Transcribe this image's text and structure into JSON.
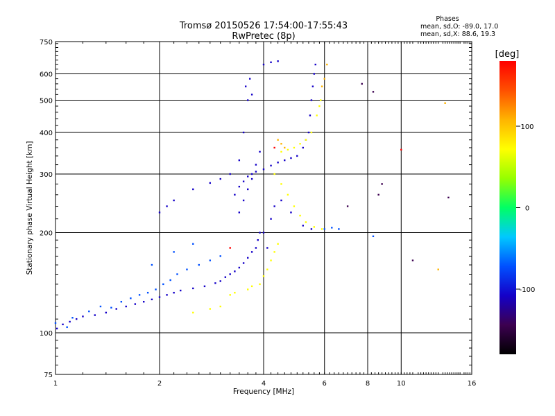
{
  "chart_data": {
    "type": "scatter",
    "title": "Tromsø 20150526 17:54:00-17:55:43",
    "subtitle": "RwPretec (8p)",
    "xlabel": "Frequency [MHz]",
    "ylabel": "Stationary phase Virtual Height [km]",
    "x_scale": "log",
    "y_scale": "log",
    "xlim": [
      1,
      16
    ],
    "ylim": [
      75,
      750
    ],
    "x_ticks": [
      1,
      2,
      4,
      6,
      8,
      10,
      16
    ],
    "y_ticks": [
      75,
      100,
      200,
      300,
      400,
      500,
      600,
      750
    ],
    "grid": true,
    "phase_info": {
      "title": "Phases",
      "line_o": "mean, sd,O: -89.0, 17.0",
      "line_x": "mean, sd,X:  88.6, 19.3"
    },
    "colorbar": {
      "label": "[deg]",
      "ticks": [
        100,
        0,
        -100
      ],
      "range": [
        -180,
        180
      ],
      "colors": [
        "#000000",
        "#3c0050",
        "#1400c8",
        "#0050ff",
        "#00c8ff",
        "#00ff64",
        "#96ff00",
        "#ffff00",
        "#ffb400",
        "#ff5000",
        "#ff0000"
      ]
    },
    "series": [
      {
        "phase": -100,
        "points": [
          [
            1.01,
            103
          ],
          [
            1.05,
            106
          ],
          [
            1.1,
            108
          ],
          [
            1.15,
            110
          ],
          [
            1.2,
            112
          ],
          [
            1.3,
            113
          ],
          [
            1.4,
            115
          ],
          [
            1.5,
            118
          ],
          [
            1.6,
            120
          ],
          [
            1.7,
            122
          ],
          [
            1.8,
            124
          ],
          [
            1.9,
            126
          ],
          [
            2.0,
            128
          ],
          [
            2.1,
            130
          ],
          [
            2.2,
            132
          ],
          [
            2.3,
            134
          ],
          [
            2.5,
            136
          ],
          [
            2.7,
            138
          ],
          [
            2.9,
            141
          ],
          [
            3.0,
            143
          ],
          [
            3.1,
            147
          ],
          [
            3.2,
            150
          ],
          [
            3.3,
            153
          ],
          [
            3.4,
            157
          ],
          [
            3.5,
            162
          ],
          [
            3.6,
            168
          ],
          [
            3.7,
            175
          ],
          [
            3.8,
            180
          ],
          [
            3.85,
            190
          ],
          [
            3.9,
            200
          ],
          [
            3.3,
            260
          ],
          [
            3.4,
            275
          ],
          [
            3.5,
            285
          ],
          [
            3.6,
            295
          ],
          [
            3.7,
            300
          ],
          [
            3.8,
            305
          ],
          [
            4.0,
            310
          ],
          [
            4.2,
            318
          ],
          [
            4.4,
            325
          ],
          [
            4.6,
            330
          ],
          [
            4.8,
            335
          ],
          [
            5.0,
            340
          ],
          [
            5.2,
            360
          ],
          [
            5.3,
            380
          ],
          [
            5.4,
            400
          ],
          [
            5.45,
            450
          ],
          [
            5.5,
            500
          ],
          [
            5.55,
            550
          ],
          [
            5.6,
            600
          ],
          [
            5.65,
            640
          ],
          [
            3.4,
            230
          ],
          [
            3.5,
            250
          ],
          [
            3.6,
            270
          ],
          [
            3.7,
            290
          ],
          [
            3.8,
            320
          ],
          [
            3.9,
            350
          ],
          [
            4.0,
            200
          ],
          [
            4.1,
            180
          ],
          [
            4.2,
            220
          ],
          [
            4.3,
            240
          ],
          [
            4.5,
            250
          ],
          [
            4.8,
            230
          ],
          [
            5.2,
            210
          ],
          [
            5.5,
            205
          ],
          [
            3.55,
            550
          ],
          [
            3.6,
            500
          ],
          [
            3.65,
            580
          ],
          [
            3.7,
            520
          ],
          [
            4.0,
            640
          ],
          [
            4.2,
            650
          ],
          [
            4.4,
            655
          ],
          [
            2.0,
            230
          ],
          [
            2.1,
            240
          ],
          [
            2.2,
            250
          ],
          [
            2.5,
            270
          ],
          [
            2.8,
            282
          ],
          [
            3.0,
            290
          ],
          [
            3.2,
            300
          ],
          [
            3.4,
            330
          ],
          [
            3.5,
            400
          ]
        ]
      },
      {
        "phase": -60,
        "points": [
          [
            1.0,
            107
          ],
          [
            1.08,
            104
          ],
          [
            1.12,
            111
          ],
          [
            1.25,
            116
          ],
          [
            1.35,
            120
          ],
          [
            1.45,
            119
          ],
          [
            1.55,
            124
          ],
          [
            1.65,
            127
          ],
          [
            1.75,
            130
          ],
          [
            1.85,
            132
          ],
          [
            1.95,
            135
          ],
          [
            2.05,
            140
          ],
          [
            2.15,
            144
          ],
          [
            2.25,
            150
          ],
          [
            2.4,
            155
          ],
          [
            2.6,
            160
          ],
          [
            2.8,
            165
          ],
          [
            3.0,
            170
          ],
          [
            1.9,
            160
          ],
          [
            2.2,
            175
          ],
          [
            2.5,
            185
          ],
          [
            6.0,
            205
          ],
          [
            6.3,
            207
          ],
          [
            6.6,
            205
          ],
          [
            8.3,
            195
          ]
        ]
      },
      {
        "phase": 80,
        "points": [
          [
            3.9,
            140
          ],
          [
            4.0,
            148
          ],
          [
            4.1,
            155
          ],
          [
            4.2,
            165
          ],
          [
            4.3,
            175
          ],
          [
            4.4,
            185
          ],
          [
            3.6,
            135
          ],
          [
            3.7,
            138
          ],
          [
            3.3,
            132
          ],
          [
            3.2,
            130
          ],
          [
            3.0,
            120
          ],
          [
            2.8,
            118
          ],
          [
            2.5,
            115
          ],
          [
            4.5,
            350
          ],
          [
            4.7,
            355
          ],
          [
            4.9,
            360
          ],
          [
            5.1,
            370
          ],
          [
            5.3,
            380
          ],
          [
            5.5,
            400
          ],
          [
            5.7,
            450
          ],
          [
            5.8,
            480
          ],
          [
            5.85,
            500
          ],
          [
            4.3,
            300
          ],
          [
            4.5,
            280
          ],
          [
            4.7,
            260
          ],
          [
            4.9,
            240
          ],
          [
            5.1,
            225
          ],
          [
            5.3,
            215
          ],
          [
            5.6,
            208
          ],
          [
            5.9,
            205
          ]
        ]
      },
      {
        "phase": 120,
        "points": [
          [
            4.4,
            380
          ],
          [
            4.5,
            370
          ],
          [
            4.6,
            360
          ],
          [
            12.8,
            155
          ],
          [
            13.4,
            490
          ],
          [
            6.0,
            580
          ],
          [
            6.1,
            640
          ],
          [
            5.9,
            550
          ]
        ]
      },
      {
        "phase": 170,
        "points": [
          [
            10.0,
            355
          ],
          [
            4.3,
            360
          ],
          [
            3.2,
            180
          ]
        ]
      },
      {
        "phase": -130,
        "points": [
          [
            7.7,
            560
          ],
          [
            8.3,
            530
          ],
          [
            8.8,
            280
          ],
          [
            13.7,
            255
          ],
          [
            10.8,
            165
          ],
          [
            8.6,
            260
          ],
          [
            7.0,
            240
          ]
        ]
      }
    ]
  }
}
